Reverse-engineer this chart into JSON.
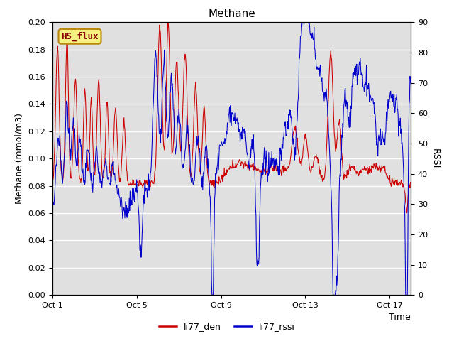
{
  "title": "Methane",
  "xlabel": "Time",
  "ylabel_left": "Methane (mmol/m3)",
  "ylabel_right": "RSSI",
  "ylim_left": [
    0.0,
    0.2
  ],
  "ylim_right": [
    0,
    90
  ],
  "yticks_left": [
    0.0,
    0.02,
    0.04,
    0.06,
    0.08,
    0.1,
    0.12,
    0.14,
    0.16,
    0.18,
    0.2
  ],
  "yticks_right": [
    0,
    10,
    20,
    30,
    40,
    50,
    60,
    70,
    80,
    90
  ],
  "xtick_labels": [
    "Oct 1",
    "Oct 5",
    "Oct 9",
    "Oct 13",
    "Oct 17"
  ],
  "xtick_positions": [
    0.0,
    4.0,
    8.0,
    12.0,
    16.0
  ],
  "legend_labels": [
    "li77_den",
    "li77_rssi"
  ],
  "legend_colors": [
    "#cc0000",
    "#0000cc"
  ],
  "box_label": "HS_flux",
  "box_facecolor": "#f5f080",
  "box_edgecolor": "#b8860b",
  "bg_color": "#e0e0e0",
  "grid_color": "#ffffff",
  "line_color_red": "#cc0000",
  "line_color_blue": "#0000cc",
  "total_days": 17.0,
  "title_fontsize": 11,
  "axis_fontsize": 9,
  "tick_fontsize": 8
}
